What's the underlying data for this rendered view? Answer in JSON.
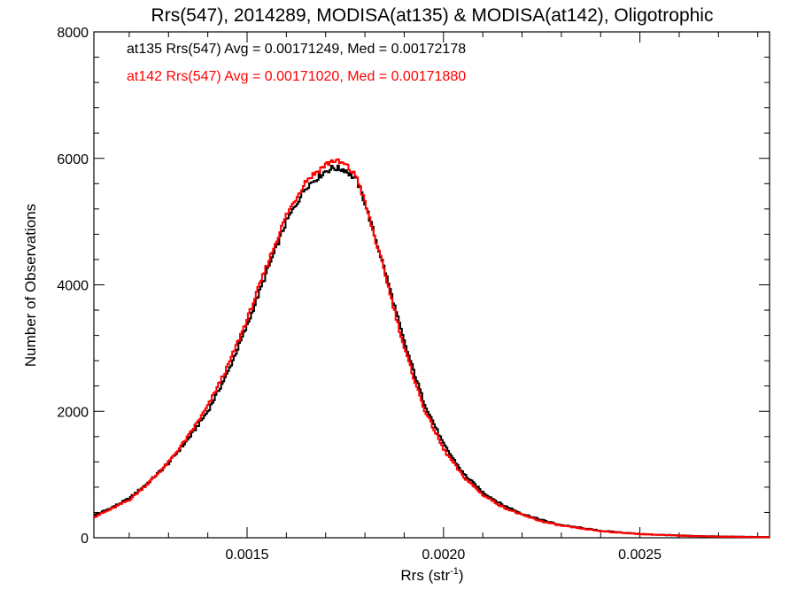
{
  "chart_data": {
    "type": "line",
    "title": "Rrs(547), 2014289, MODISA(at135) & MODISA(at142), Oligotrophic",
    "xlabel_main": "Rrs (str",
    "xlabel_sup": "-1",
    "xlabel_close": ")",
    "ylabel": "Number of Observations",
    "xlim": [
      0.00111,
      0.00283
    ],
    "ylim": [
      0,
      8000
    ],
    "x_ticks": [
      0.0015,
      0.002,
      0.0025
    ],
    "x_tick_labels": [
      "0.0015",
      "0.0020",
      "0.0025"
    ],
    "y_ticks": [
      0,
      2000,
      4000,
      6000,
      8000
    ],
    "y_tick_labels": [
      "0",
      "2000",
      "4000",
      "6000",
      "8000"
    ],
    "annotations": [
      {
        "text": "at135 Rrs(547) Avg = 0.00171249, Med = 0.00172178",
        "color": "#000000"
      },
      {
        "text": "at142 Rrs(547) Avg = 0.00171020, Med = 0.00171880",
        "color": "#ff0000"
      }
    ],
    "x": [
      0.00111,
      0.00115,
      0.0012,
      0.00125,
      0.0013,
      0.00135,
      0.0014,
      0.00145,
      0.0015,
      0.00155,
      0.0016,
      0.00165,
      0.0017,
      0.00172,
      0.00175,
      0.00178,
      0.0018,
      0.00185,
      0.0019,
      0.00195,
      0.002,
      0.00205,
      0.0021,
      0.00215,
      0.0022,
      0.00225,
      0.0023,
      0.0024,
      0.0025,
      0.0026,
      0.0027,
      0.00283
    ],
    "series": [
      {
        "color": "#000000",
        "values": [
          350,
          460,
          620,
          880,
          1180,
          1560,
          2000,
          2600,
          3350,
          4200,
          5000,
          5550,
          5800,
          5850,
          5820,
          5650,
          5300,
          4250,
          3100,
          2150,
          1480,
          1020,
          720,
          520,
          380,
          280,
          200,
          110,
          60,
          35,
          20,
          10
        ]
      },
      {
        "color": "#ff0000",
        "values": [
          330,
          440,
          600,
          870,
          1190,
          1600,
          2080,
          2700,
          3450,
          4300,
          5100,
          5650,
          5900,
          5970,
          5900,
          5700,
          5300,
          4200,
          3000,
          2050,
          1400,
          970,
          680,
          490,
          360,
          260,
          190,
          105,
          58,
          33,
          18,
          9
        ]
      }
    ]
  }
}
